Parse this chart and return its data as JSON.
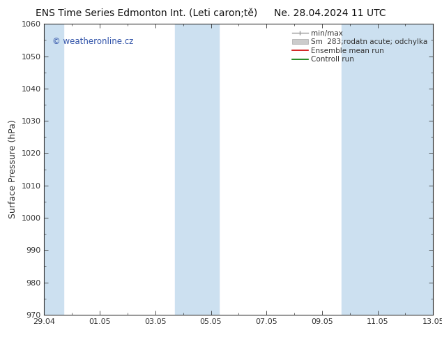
{
  "title_left": "ENS Time Series Edmonton Int. (Leti caron;tě)",
  "title_right": "Ne. 28.04.2024 11 UTC",
  "ylabel": "Surface Pressure (hPa)",
  "ylim": [
    970,
    1060
  ],
  "yticks": [
    970,
    980,
    990,
    1000,
    1010,
    1020,
    1030,
    1040,
    1050,
    1060
  ],
  "xlim_start": 0,
  "xlim_end": 14,
  "xtick_labels": [
    "29.04",
    "01.05",
    "03.05",
    "05.05",
    "07.05",
    "09.05",
    "11.05",
    "13.05"
  ],
  "xtick_positions": [
    0,
    2,
    4,
    6,
    8,
    10,
    12,
    14
  ],
  "shaded_bands": [
    {
      "x_start": -0.1,
      "x_end": 0.7,
      "color": "#cce0f0"
    },
    {
      "x_start": 4.7,
      "x_end": 6.3,
      "color": "#cce0f0"
    },
    {
      "x_start": 10.7,
      "x_end": 14.1,
      "color": "#cce0f0"
    }
  ],
  "background_color": "#ffffff",
  "plot_bg_color": "#ffffff",
  "watermark_text": "© weatheronline.cz",
  "watermark_color": "#3355aa",
  "legend_labels": [
    "min/max",
    "Sm  283;rodatn acute; odchylka",
    "Ensemble mean run",
    "Controll run"
  ],
  "legend_colors": [
    "#999999",
    "#bbbbbb",
    "#cc0000",
    "#007700"
  ],
  "font_size_title": 10,
  "font_size_axis": 9,
  "font_size_ticks": 8,
  "font_size_legend": 7.5,
  "tick_color": "#333333",
  "axis_color": "#333333"
}
